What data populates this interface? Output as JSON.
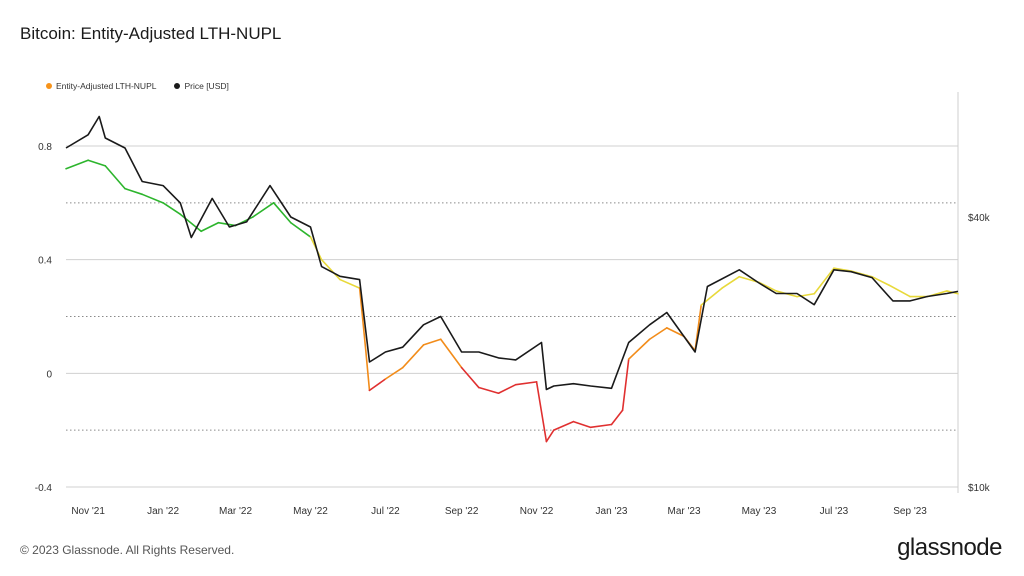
{
  "title": "Bitcoin: Entity-Adjusted LTH-NUPL",
  "footer": "© 2023 Glassnode. All Rights Reserved.",
  "brand": "glassnode",
  "colors": {
    "nupl_orange": "#f7931a",
    "price": "#1a1a1a",
    "zone_green": "#2db52d",
    "zone_yellow": "#e8d93a",
    "zone_orange": "#f28c1a",
    "zone_red": "#e03030"
  },
  "chart_data": {
    "type": "line",
    "title": "Bitcoin: Entity-Adjusted LTH-NUPL",
    "legend": [
      {
        "name": "Entity-Adjusted LTH-NUPL",
        "color": "#f7931a"
      },
      {
        "name": "Price [USD]",
        "color": "#1a1a1a"
      }
    ],
    "x_ticks": [
      "Nov '21",
      "Jan '22",
      "Mar '22",
      "May '22",
      "Jul '22",
      "Sep '22",
      "Nov '22",
      "Jan '23",
      "Mar '23",
      "May '23",
      "Jul '23",
      "Sep '23"
    ],
    "y_left_ticks": [
      "0.8",
      "0.4",
      "0",
      "-0.4"
    ],
    "y_left_range": [
      -0.4,
      0.8
    ],
    "y_right_ticks": [
      "$40k",
      "$10k"
    ],
    "y_right_scale": "log",
    "y_right_range": [
      10000,
      70000
    ],
    "color_zones": [
      {
        "range": [
          0.5,
          1.0
        ],
        "color": "#2db52d"
      },
      {
        "range": [
          0.25,
          0.5
        ],
        "color": "#e8d93a"
      },
      {
        "range": [
          0.0,
          0.25
        ],
        "color": "#f28c1a"
      },
      {
        "range": [
          -1.0,
          0.0
        ],
        "color": "#e03030"
      }
    ],
    "series": [
      {
        "name": "Entity-Adjusted LTH-NUPL",
        "x": [
          "2021-10-14",
          "2021-11-01",
          "2021-11-15",
          "2021-12-01",
          "2021-12-15",
          "2022-01-01",
          "2022-01-15",
          "2022-02-01",
          "2022-02-15",
          "2022-03-01",
          "2022-03-15",
          "2022-04-01",
          "2022-04-15",
          "2022-05-01",
          "2022-05-10",
          "2022-05-25",
          "2022-06-10",
          "2022-06-15",
          "2022-06-18",
          "2022-07-01",
          "2022-07-15",
          "2022-08-01",
          "2022-08-15",
          "2022-09-01",
          "2022-09-15",
          "2022-10-01",
          "2022-10-15",
          "2022-11-01",
          "2022-11-09",
          "2022-11-15",
          "2022-12-01",
          "2022-12-15",
          "2023-01-01",
          "2023-01-10",
          "2023-01-15",
          "2023-02-01",
          "2023-02-15",
          "2023-03-01",
          "2023-03-10",
          "2023-03-15",
          "2023-04-01",
          "2023-04-15",
          "2023-05-01",
          "2023-05-15",
          "2023-06-01",
          "2023-06-15",
          "2023-07-01",
          "2023-07-15",
          "2023-08-01",
          "2023-08-15",
          "2023-09-01",
          "2023-09-15",
          "2023-10-01",
          "2023-10-10"
        ],
        "y": [
          0.72,
          0.75,
          0.73,
          0.65,
          0.63,
          0.6,
          0.56,
          0.5,
          0.53,
          0.52,
          0.55,
          0.6,
          0.53,
          0.48,
          0.4,
          0.33,
          0.3,
          0.08,
          -0.06,
          -0.02,
          0.02,
          0.1,
          0.12,
          0.02,
          -0.05,
          -0.07,
          -0.04,
          -0.03,
          -0.24,
          -0.2,
          -0.17,
          -0.19,
          -0.18,
          -0.13,
          0.05,
          0.12,
          0.16,
          0.13,
          0.08,
          0.24,
          0.3,
          0.34,
          0.32,
          0.29,
          0.27,
          0.28,
          0.37,
          0.36,
          0.34,
          0.31,
          0.27,
          0.27,
          0.29,
          0.28
        ]
      },
      {
        "name": "Price [USD]",
        "x": [
          "2021-10-14",
          "2021-11-01",
          "2021-11-10",
          "2021-11-15",
          "2021-12-01",
          "2021-12-15",
          "2022-01-01",
          "2022-01-15",
          "2022-01-24",
          "2022-02-10",
          "2022-02-24",
          "2022-03-10",
          "2022-03-29",
          "2022-04-15",
          "2022-05-01",
          "2022-05-10",
          "2022-05-25",
          "2022-06-10",
          "2022-06-18",
          "2022-07-01",
          "2022-07-15",
          "2022-08-01",
          "2022-08-15",
          "2022-09-01",
          "2022-09-15",
          "2022-10-01",
          "2022-10-15",
          "2022-11-05",
          "2022-11-09",
          "2022-11-15",
          "2022-12-01",
          "2022-12-15",
          "2023-01-01",
          "2023-01-15",
          "2023-02-01",
          "2023-02-15",
          "2023-03-10",
          "2023-03-20",
          "2023-04-15",
          "2023-05-01",
          "2023-05-15",
          "2023-06-01",
          "2023-06-15",
          "2023-07-01",
          "2023-07-15",
          "2023-08-01",
          "2023-08-18",
          "2023-09-01",
          "2023-09-15",
          "2023-10-01",
          "2023-10-10"
        ],
        "y": [
          57000,
          61000,
          67000,
          60000,
          57000,
          48000,
          47000,
          43000,
          36000,
          44000,
          38000,
          39000,
          47000,
          40000,
          38000,
          31000,
          29500,
          29000,
          19000,
          20000,
          20500,
          23000,
          24000,
          20000,
          20000,
          19400,
          19200,
          21000,
          16500,
          16800,
          17000,
          16800,
          16600,
          21000,
          23000,
          24500,
          20000,
          28000,
          30500,
          28500,
          27000,
          27000,
          25500,
          30500,
          30200,
          29300,
          26000,
          26000,
          26600,
          27000,
          27300
        ]
      }
    ]
  }
}
